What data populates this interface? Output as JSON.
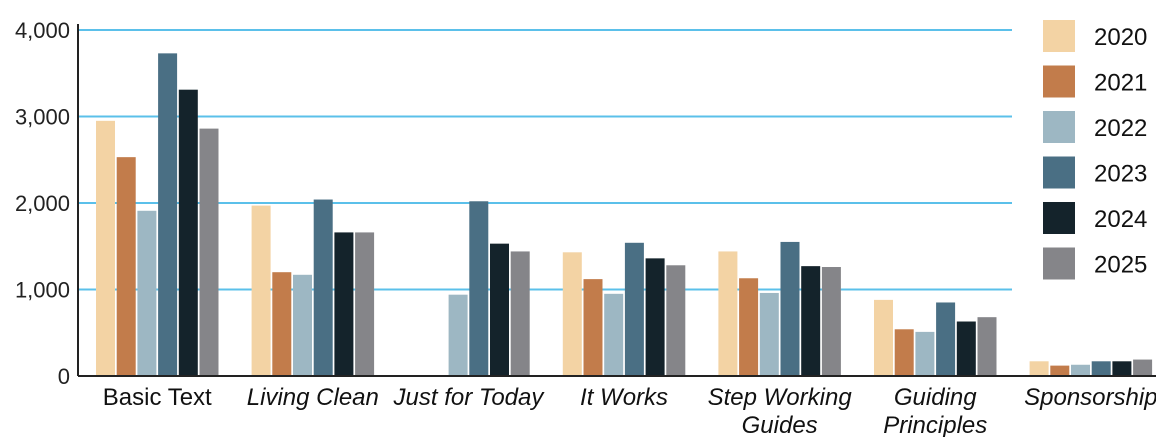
{
  "chart_data": {
    "type": "bar",
    "categories": [
      "Basic Text",
      "Living Clean",
      "Just for Today",
      "It Works",
      "Step Working Guides",
      "Guiding Principles",
      "Sponsorship"
    ],
    "category_lines": [
      [
        "Basic Text"
      ],
      [
        "Living Clean"
      ],
      [
        "Just for Today"
      ],
      [
        "It Works"
      ],
      [
        "Step Working",
        "Guides"
      ],
      [
        "Guiding",
        "Principles"
      ],
      [
        "Sponsorship"
      ]
    ],
    "italic_categories": [
      false,
      true,
      true,
      true,
      true,
      true,
      true
    ],
    "series": [
      {
        "name": "2020",
        "color": "#f3d3a4",
        "values": [
          2950,
          1970,
          null,
          1430,
          1440,
          880,
          170
        ]
      },
      {
        "name": "2021",
        "color": "#c27c4b",
        "values": [
          2530,
          1200,
          null,
          1120,
          1130,
          540,
          120
        ]
      },
      {
        "name": "2022",
        "color": "#9db7c3",
        "values": [
          1910,
          1170,
          940,
          950,
          960,
          510,
          130
        ]
      },
      {
        "name": "2023",
        "color": "#4a6f84",
        "values": [
          3730,
          2040,
          2020,
          1540,
          1550,
          850,
          170
        ]
      },
      {
        "name": "2024",
        "color": "#14232b",
        "values": [
          3310,
          1660,
          1530,
          1360,
          1270,
          630,
          170
        ]
      },
      {
        "name": "2025",
        "color": "#858589",
        "values": [
          2860,
          1660,
          1440,
          1280,
          1260,
          680,
          190
        ]
      }
    ],
    "yticks": [
      0,
      1000,
      2000,
      3000,
      4000
    ],
    "ytick_labels": [
      "0",
      "1,000",
      "2,000",
      "3,000",
      "4,000"
    ],
    "ylim": [
      0,
      4000
    ],
    "grid": true,
    "grid_color": "#5bc0ea",
    "legend_position": "right",
    "title": "",
    "xlabel": "",
    "ylabel": ""
  }
}
